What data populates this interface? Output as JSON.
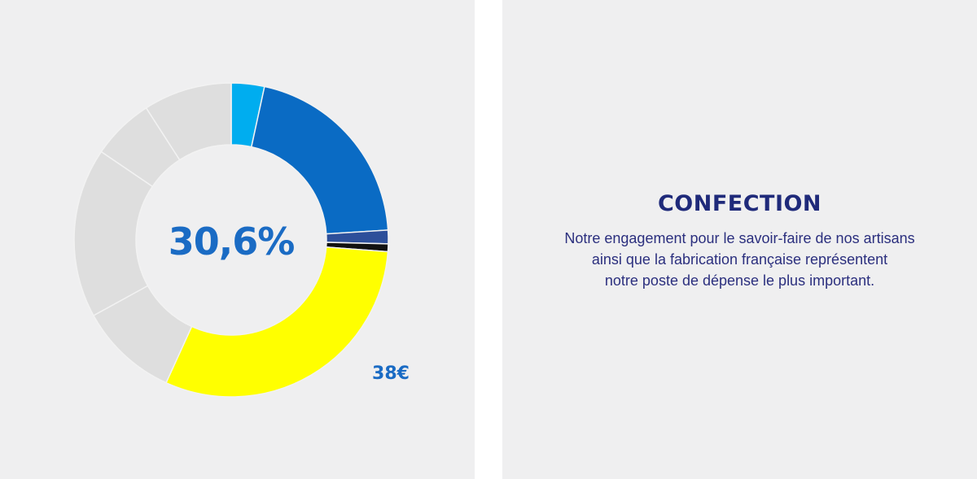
{
  "left_panel": {
    "center_value": "30,6%",
    "amount": "38€"
  },
  "right_panel": {
    "heading": "CONFECTION",
    "body_lines": [
      "Notre engagement pour le savoir-faire de nos artisans",
      "ainsi que la fabrication française représentent",
      "notre poste de dépense le plus important."
    ]
  },
  "colors": {
    "panel_background": "#efeff0",
    "page_background": "#ffffff",
    "center_value": "#1a6bc4",
    "amount": "#1a6bc4",
    "heading": "#1f2a7a",
    "body_text": "#2b2f7e",
    "separator": "#f2f2f2"
  },
  "chart_data": {
    "type": "pie",
    "style": "donut",
    "start": "top",
    "direction": "clockwise",
    "highlighted_slice": "Confection",
    "slices": [
      {
        "name": "",
        "value": 3.4,
        "color": "#00adef"
      },
      {
        "name": "",
        "value": 20.6,
        "color": "#0a6bc4"
      },
      {
        "name": "",
        "value": 1.4,
        "color": "#2d4f9a"
      },
      {
        "name": "",
        "value": 0.8,
        "color": "#111111"
      },
      {
        "name": "Confection",
        "value": 30.6,
        "color": "#ffff00"
      },
      {
        "name": "",
        "value": 10.2,
        "color": "#dedede"
      },
      {
        "name": "",
        "value": 17.5,
        "color": "#dedede"
      },
      {
        "name": "",
        "value": 6.4,
        "color": "#dedede"
      },
      {
        "name": "",
        "value": 9.1,
        "color": "#dedede"
      }
    ]
  }
}
